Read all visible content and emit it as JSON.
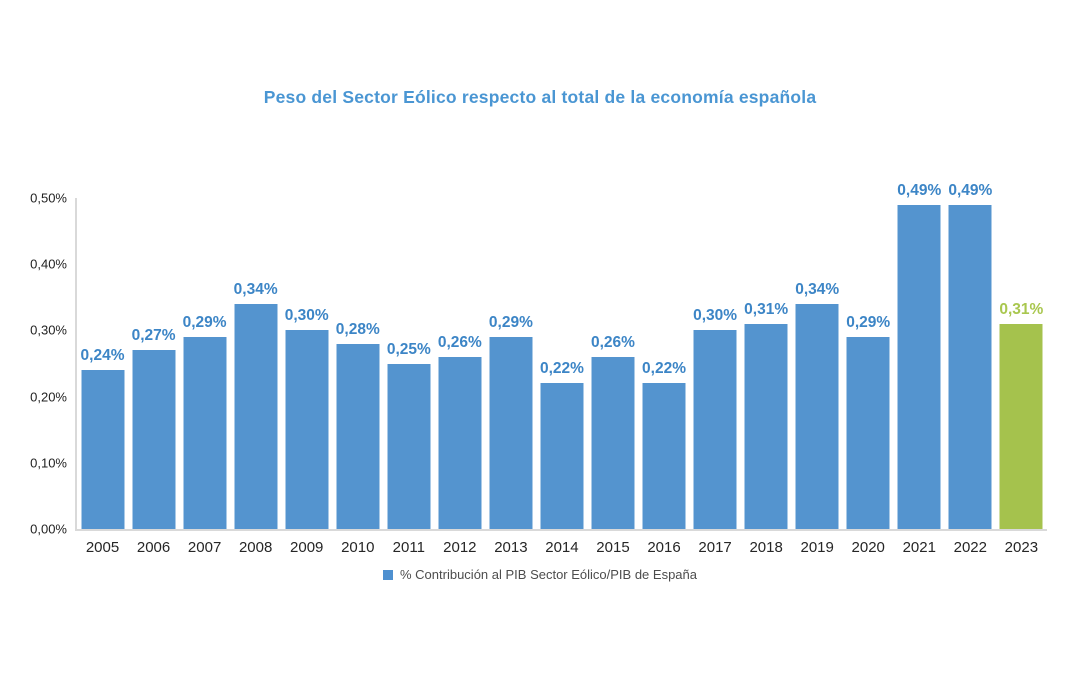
{
  "chart_data": {
    "type": "bar",
    "title": "Peso del Sector Eólico respecto al total de la economía española",
    "legend": "% Contribución al PIB Sector Eólico/PIB de España",
    "legend_position": "bottom-center",
    "grid": false,
    "categories": [
      "2005",
      "2006",
      "2007",
      "2008",
      "2009",
      "2010",
      "2011",
      "2012",
      "2013",
      "2014",
      "2015",
      "2016",
      "2017",
      "2018",
      "2019",
      "2020",
      "2021",
      "2022",
      "2023"
    ],
    "values": [
      0.24,
      0.27,
      0.29,
      0.34,
      0.3,
      0.28,
      0.25,
      0.26,
      0.29,
      0.22,
      0.26,
      0.22,
      0.3,
      0.31,
      0.34,
      0.29,
      0.49,
      0.49,
      0.31
    ],
    "value_labels": [
      "0,24%",
      "0,27%",
      "0,29%",
      "0,34%",
      "0,30%",
      "0,28%",
      "0,25%",
      "0,26%",
      "0,29%",
      "0,22%",
      "0,26%",
      "0,22%",
      "0,30%",
      "0,31%",
      "0,34%",
      "0,29%",
      "0,49%",
      "0,49%",
      "0,31%"
    ],
    "highlight_last": true,
    "ylim": [
      0,
      0.5
    ],
    "yticks": [
      {
        "label": "0,00%",
        "value": 0.0
      },
      {
        "label": "0,10%",
        "value": 0.1
      },
      {
        "label": "0,20%",
        "value": 0.2
      },
      {
        "label": "0,30%",
        "value": 0.3
      },
      {
        "label": "0,40%",
        "value": 0.4
      },
      {
        "label": "0,50%",
        "value": 0.5
      }
    ],
    "xlabel": "",
    "ylabel": "",
    "colors": {
      "bar": "#5494CF",
      "bar_highlight": "#A5C24D",
      "value_label": "#3C85C6",
      "value_label_highlight": "#A9C74F",
      "title": "#4A96D3",
      "axis_line": "#D9D9D9",
      "tick_text": "#1F1F1F",
      "legend_marker": "#4E90D0",
      "legend_text": "#4D4D4D"
    }
  }
}
